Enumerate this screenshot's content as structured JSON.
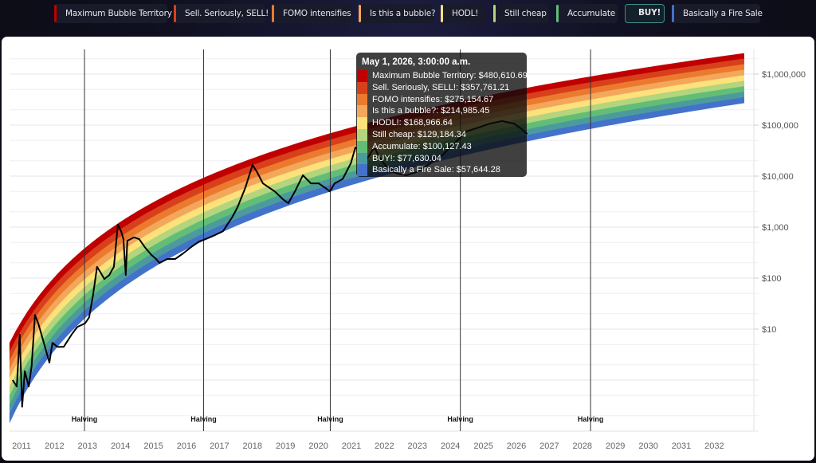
{
  "legend": {
    "items": [
      {
        "label": "Maximum Bubble Territory",
        "color": "#c00000"
      },
      {
        "label": "Sell. Seriously, SELL!",
        "color": "#d8401c"
      },
      {
        "label": "FOMO intensifies",
        "color": "#ec7a2e"
      },
      {
        "label": "Is this a bubble?",
        "color": "#f3a75b"
      },
      {
        "label": "HODL!",
        "color": "#fde17a"
      },
      {
        "label": "Still cheap",
        "color": "#b3d57d"
      },
      {
        "label": "Accumulate",
        "color": "#62bd77"
      },
      {
        "label": "BUY!",
        "color": "#4c9b9c",
        "selected": true
      },
      {
        "label": "Basically a Fire Sale",
        "color": "#4272c9"
      }
    ]
  },
  "tooltip": {
    "title": "May 1, 2026, 3:00:00 a.m.",
    "rows": [
      {
        "text": "Maximum Bubble Territory: $480,610.69",
        "color": "#c00000"
      },
      {
        "text": "Sell. Seriously, SELL!: $357,761.21",
        "color": "#d8401c"
      },
      {
        "text": "FOMO intensifies: $275,154.67",
        "color": "#ec7a2e"
      },
      {
        "text": "Is this a bubble?: $214,985.45",
        "color": "#f3a75b"
      },
      {
        "text": "HODL!: $168,966.64",
        "color": "#fde17a"
      },
      {
        "text": "Still cheap: $129,184.34",
        "color": "#b3d57d"
      },
      {
        "text": "Accumulate: $100,127.43",
        "color": "#62bd77"
      },
      {
        "text": "BUY!: $77,630.04",
        "color": "#4c9b9c"
      },
      {
        "text": "Basically a Fire Sale: $57,644.28",
        "color": "#4272c9"
      }
    ]
  },
  "chart_data": {
    "type": "area",
    "yscale": "log",
    "ylim": [
      0.1,
      3000000
    ],
    "xlim": [
      "2010-08-01",
      "2032-12-31"
    ],
    "grid": true,
    "y_axis_position": "right",
    "y_ticks": [
      {
        "value": 1000000,
        "label": "$1,000,000"
      },
      {
        "value": 100000,
        "label": "$100,000"
      },
      {
        "value": 10000,
        "label": "$10,000"
      },
      {
        "value": 1000,
        "label": "$1,000"
      },
      {
        "value": 100,
        "label": "$100"
      },
      {
        "value": 10,
        "label": "$10"
      }
    ],
    "x_ticks": [
      "2011",
      "2012",
      "2013",
      "2014",
      "2015",
      "2016",
      "2017",
      "2018",
      "2019",
      "2020",
      "2021",
      "2022",
      "2023",
      "2024",
      "2025",
      "2026",
      "2027",
      "2028",
      "2029",
      "2030",
      "2031",
      "2032"
    ],
    "bands": [
      {
        "name": "Maximum Bubble Territory",
        "color": "#c00000"
      },
      {
        "name": "Sell. Seriously, SELL!",
        "color": "#d8401c"
      },
      {
        "name": "FOMO intensifies",
        "color": "#ec7a2e"
      },
      {
        "name": "Is this a bubble?",
        "color": "#f3a75b"
      },
      {
        "name": "HODL!",
        "color": "#fde17a"
      },
      {
        "name": "Still cheap",
        "color": "#b3d57d"
      },
      {
        "name": "Accumulate",
        "color": "#62bd77"
      },
      {
        "name": "BUY!",
        "color": "#4c9b9c"
      },
      {
        "name": "Basically a Fire Sale",
        "color": "#4272c9"
      }
    ],
    "halvings": [
      {
        "date": "2012-11-28",
        "label": "Halving"
      },
      {
        "date": "2016-07-09",
        "label": "Halving"
      },
      {
        "date": "2020-05-11",
        "label": "Halving"
      },
      {
        "date": "2024-04-20",
        "label": "Halving"
      },
      {
        "date": "2028-04-01",
        "label": "Halving"
      }
    ],
    "price_color": "#000000",
    "price": [
      [
        "2010-09-24",
        1.0
      ],
      [
        "2010-11-10",
        0.75
      ],
      [
        "2010-12-12",
        7.8
      ],
      [
        "2011-01-08",
        0.3
      ],
      [
        "2011-02-06",
        1.5
      ],
      [
        "2011-03-22",
        0.75
      ],
      [
        "2011-04-23",
        1.9
      ],
      [
        "2011-05-30",
        19
      ],
      [
        "2011-07-05",
        13
      ],
      [
        "2011-09-05",
        5.4
      ],
      [
        "2011-11-06",
        2.2
      ],
      [
        "2011-12-09",
        5.4
      ],
      [
        "2012-02-02",
        4.5
      ],
      [
        "2012-04-12",
        4.5
      ],
      [
        "2012-07-08",
        7.8
      ],
      [
        "2012-09-08",
        11
      ],
      [
        "2012-12-05",
        13
      ],
      [
        "2013-01-19",
        17
      ],
      [
        "2013-03-04",
        47
      ],
      [
        "2013-04-17",
        166
      ],
      [
        "2013-05-16",
        138
      ],
      [
        "2013-07-06",
        96
      ],
      [
        "2013-08-30",
        115
      ],
      [
        "2013-10-20",
        166
      ],
      [
        "2013-12-03",
        1120
      ],
      [
        "2014-01-08",
        830
      ],
      [
        "2014-02-03",
        580
      ],
      [
        "2014-02-28",
        115
      ],
      [
        "2014-03-18",
        540
      ],
      [
        "2014-05-30",
        630
      ],
      [
        "2014-07-27",
        580
      ],
      [
        "2014-09-27",
        405
      ],
      [
        "2014-12-09",
        285
      ],
      [
        "2015-01-30",
        237
      ],
      [
        "2015-03-08",
        198
      ],
      [
        "2015-06-03",
        237
      ],
      [
        "2015-08-29",
        237
      ],
      [
        "2015-11-25",
        305
      ],
      [
        "2016-02-21",
        405
      ],
      [
        "2016-05-22",
        525
      ],
      [
        "2016-07-31",
        580
      ],
      [
        "2016-11-14",
        700
      ],
      [
        "2017-02-09",
        830
      ],
      [
        "2017-05-26",
        1600
      ],
      [
        "2017-07-20",
        2460
      ],
      [
        "2017-10-16",
        6000
      ],
      [
        "2018-01-01",
        16500
      ],
      [
        "2018-02-17",
        12400
      ],
      [
        "2018-04-27",
        7200
      ],
      [
        "2018-09-06",
        5000
      ],
      [
        "2018-12-03",
        3540
      ],
      [
        "2019-02-02",
        2940
      ],
      [
        "2019-04-16",
        5000
      ],
      [
        "2019-07-13",
        10400
      ],
      [
        "2019-10-09",
        7200
      ],
      [
        "2020-01-04",
        7200
      ],
      [
        "2020-04-01",
        5600
      ],
      [
        "2020-05-08",
        5000
      ],
      [
        "2020-06-28",
        7200
      ],
      [
        "2020-09-24",
        8700
      ],
      [
        "2020-12-24",
        17800
      ],
      [
        "2021-02-14",
        36500
      ],
      [
        "2021-04-10",
        30400
      ],
      [
        "2021-06-18",
        21300
      ],
      [
        "2021-09-13",
        36500
      ],
      [
        "2021-11-21",
        21300
      ],
      [
        "2022-03-07",
        12400
      ],
      [
        "2022-06-07",
        11100
      ],
      [
        "2022-09-02",
        10400
      ],
      [
        "2023-01-12",
        12400
      ],
      [
        "2023-05-23",
        17800
      ],
      [
        "2023-10-01",
        25500
      ],
      [
        "2024-02-13",
        43600
      ],
      [
        "2024-06-24",
        75000
      ],
      [
        "2024-11-03",
        89000
      ],
      [
        "2025-03-15",
        107000
      ],
      [
        "2025-07-27",
        120000
      ],
      [
        "2025-12-06",
        107000
      ],
      [
        "2026-03-04",
        83000
      ],
      [
        "2026-05-01",
        67000
      ]
    ]
  }
}
